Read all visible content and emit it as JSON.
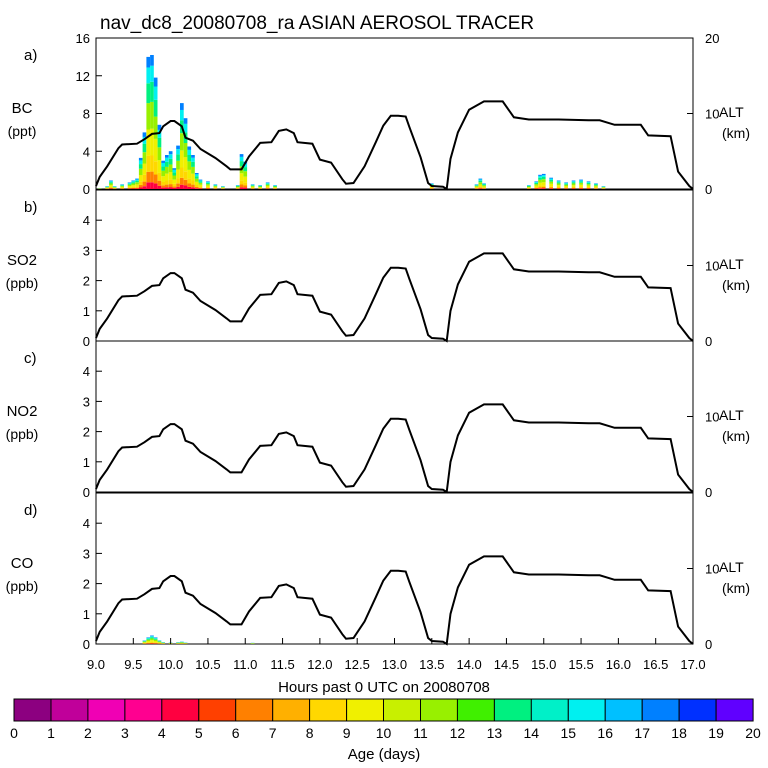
{
  "chart_data": {
    "type": "multi-panel stacked bar + line",
    "title": "nav_dc8_20080708_ra ASIAN AEROSOL TRACER",
    "xlabel": "Hours past 0 UTC on 20080708",
    "xlim": [
      9.0,
      17.0
    ],
    "xticks": [
      "9.0",
      "9.5",
      "10.0",
      "10.5",
      "11.0",
      "11.5",
      "12.0",
      "12.5",
      "13.0",
      "13.5",
      "14.0",
      "14.5",
      "15.0",
      "15.5",
      "16.0",
      "16.5",
      "17.0"
    ],
    "alt_axis": {
      "label": "ALT",
      "unit": "(km)",
      "ylim": [
        0,
        20
      ],
      "ticks": [
        "20",
        "10",
        "0"
      ]
    },
    "altitude_km": [
      [
        9.0,
        0.4
      ],
      [
        9.05,
        1.6
      ],
      [
        9.15,
        3.0
      ],
      [
        9.3,
        5.4
      ],
      [
        9.35,
        5.9
      ],
      [
        9.55,
        6.0
      ],
      [
        9.65,
        6.6
      ],
      [
        9.75,
        7.3
      ],
      [
        9.85,
        7.4
      ],
      [
        9.9,
        8.3
      ],
      [
        10.0,
        9.0
      ],
      [
        10.05,
        9.0
      ],
      [
        10.15,
        8.3
      ],
      [
        10.2,
        6.8
      ],
      [
        10.3,
        6.4
      ],
      [
        10.4,
        5.3
      ],
      [
        10.6,
        4.1
      ],
      [
        10.75,
        3.0
      ],
      [
        10.8,
        2.6
      ],
      [
        10.95,
        2.6
      ],
      [
        11.05,
        4.3
      ],
      [
        11.2,
        6.1
      ],
      [
        11.35,
        6.2
      ],
      [
        11.45,
        7.7
      ],
      [
        11.55,
        7.9
      ],
      [
        11.65,
        7.4
      ],
      [
        11.7,
        6.2
      ],
      [
        11.9,
        6.0
      ],
      [
        12.0,
        3.9
      ],
      [
        12.15,
        3.5
      ],
      [
        12.3,
        1.3
      ],
      [
        12.35,
        0.7
      ],
      [
        12.45,
        0.8
      ],
      [
        12.6,
        3.0
      ],
      [
        12.75,
        6.2
      ],
      [
        12.85,
        8.4
      ],
      [
        12.95,
        9.7
      ],
      [
        13.05,
        9.7
      ],
      [
        13.15,
        9.6
      ],
      [
        13.2,
        8.2
      ],
      [
        13.35,
        4.2
      ],
      [
        13.45,
        0.8
      ],
      [
        13.5,
        0.4
      ],
      [
        13.65,
        0.3
      ],
      [
        13.7,
        0.0
      ],
      [
        13.75,
        4.0
      ],
      [
        13.85,
        7.5
      ],
      [
        14.0,
        10.5
      ],
      [
        14.2,
        11.6
      ],
      [
        14.45,
        11.6
      ],
      [
        14.6,
        9.5
      ],
      [
        14.8,
        9.2
      ],
      [
        15.2,
        9.2
      ],
      [
        15.6,
        9.1
      ],
      [
        15.75,
        9.1
      ],
      [
        15.95,
        8.5
      ],
      [
        16.3,
        8.5
      ],
      [
        16.4,
        7.1
      ],
      [
        16.7,
        7.0
      ],
      [
        16.8,
        2.3
      ],
      [
        16.95,
        0.4
      ],
      [
        17.0,
        0.0
      ]
    ],
    "panels": [
      {
        "letter": "a)",
        "species": "BC",
        "unit": "(ppt)",
        "ylim": [
          0,
          16
        ],
        "yticks": [
          "16",
          "12",
          "8",
          "4",
          "0"
        ],
        "tracer_columns": [
          [
            9.05,
            0.1
          ],
          [
            9.15,
            0.3
          ],
          [
            9.2,
            0.9
          ],
          [
            9.25,
            0.3
          ],
          [
            9.35,
            0.5
          ],
          [
            9.45,
            0.7
          ],
          [
            9.5,
            0.9
          ],
          [
            9.55,
            1.1
          ],
          [
            9.6,
            3.3
          ],
          [
            9.65,
            6.0
          ],
          [
            9.7,
            14.0
          ],
          [
            9.75,
            14.2
          ],
          [
            9.8,
            11.8
          ],
          [
            9.85,
            6.8
          ],
          [
            9.9,
            3.0
          ],
          [
            9.95,
            3.6
          ],
          [
            10.0,
            4.0
          ],
          [
            10.05,
            2.2
          ],
          [
            10.1,
            4.6
          ],
          [
            10.15,
            9.1
          ],
          [
            10.2,
            7.5
          ],
          [
            10.25,
            4.5
          ],
          [
            10.3,
            3.6
          ],
          [
            10.35,
            1.7
          ],
          [
            10.4,
            1.0
          ],
          [
            10.5,
            0.8
          ],
          [
            10.6,
            0.5
          ],
          [
            10.7,
            0.3
          ],
          [
            10.9,
            0.4
          ],
          [
            10.95,
            3.7
          ],
          [
            11.0,
            2.9
          ],
          [
            11.1,
            0.5
          ],
          [
            11.2,
            0.4
          ],
          [
            11.3,
            0.7
          ],
          [
            11.4,
            0.4
          ],
          [
            13.5,
            0.6
          ],
          [
            14.1,
            0.5
          ],
          [
            14.15,
            1.1
          ],
          [
            14.2,
            0.6
          ],
          [
            14.8,
            0.4
          ],
          [
            14.9,
            0.8
          ],
          [
            14.95,
            1.5
          ],
          [
            15.0,
            1.6
          ],
          [
            15.1,
            1.2
          ],
          [
            15.2,
            0.9
          ],
          [
            15.3,
            0.7
          ],
          [
            15.4,
            0.9
          ],
          [
            15.5,
            1.0
          ],
          [
            15.6,
            0.8
          ],
          [
            15.7,
            0.6
          ],
          [
            15.8,
            0.3
          ]
        ]
      },
      {
        "letter": "b)",
        "species": "SO2",
        "unit": "(ppb)",
        "ylim": [
          0,
          5
        ],
        "yticks": [
          "4",
          "3",
          "2",
          "1",
          "0"
        ],
        "tracer_columns": []
      },
      {
        "letter": "c)",
        "species": "NO2",
        "unit": "(ppb)",
        "ylim": [
          0,
          5
        ],
        "yticks": [
          "4",
          "3",
          "2",
          "1",
          "0"
        ],
        "tracer_columns": []
      },
      {
        "letter": "d)",
        "species": "CO",
        "unit": "(ppb)",
        "ylim": [
          0,
          5
        ],
        "yticks": [
          "4",
          "3",
          "2",
          "1",
          "0"
        ],
        "tracer_columns": [
          [
            9.65,
            0.12
          ],
          [
            9.7,
            0.22
          ],
          [
            9.75,
            0.28
          ],
          [
            9.8,
            0.22
          ],
          [
            9.85,
            0.12
          ],
          [
            9.9,
            0.06
          ],
          [
            10.0,
            0.05
          ],
          [
            10.1,
            0.06
          ],
          [
            10.15,
            0.08
          ],
          [
            10.2,
            0.05
          ],
          [
            11.1,
            0.04
          ]
        ]
      }
    ],
    "colorbar": {
      "label": "Age (days)",
      "min": 0,
      "max": 20,
      "tick_labels": [
        "0",
        "1",
        "2",
        "3",
        "4",
        "5",
        "6",
        "7",
        "8",
        "9",
        "10",
        "11",
        "12",
        "13",
        "14",
        "15",
        "16",
        "17",
        "18",
        "19",
        "20"
      ],
      "colors": [
        "#8c0080",
        "#c0009a",
        "#f000b4",
        "#ff0090",
        "#ff0040",
        "#ff4000",
        "#ff8000",
        "#ffb000",
        "#ffd800",
        "#f0f000",
        "#c8f000",
        "#98f000",
        "#40f000",
        "#00f080",
        "#00f0c8",
        "#00f0f0",
        "#00c0ff",
        "#0080ff",
        "#0030ff",
        "#6000ff"
      ]
    }
  }
}
